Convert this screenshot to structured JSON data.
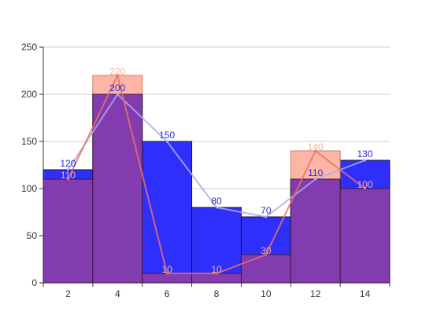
{
  "chart_data": {
    "type": "bar",
    "x": [
      2,
      4,
      6,
      8,
      10,
      12,
      14
    ],
    "categories": [
      "2",
      "4",
      "6",
      "8",
      "10",
      "12",
      "14"
    ],
    "ylim": [
      0,
      250
    ],
    "yticks": [
      0,
      50,
      100,
      150,
      200,
      250
    ],
    "grid": true,
    "title": "",
    "xlabel": "",
    "ylabel": "",
    "series": [
      {
        "values": [
          120,
          200,
          150,
          80,
          70,
          110,
          130
        ],
        "bar_color": "#2f2ffb",
        "line_color": "#aaaaf0",
        "label_color": "#2b2bdb"
      },
      {
        "values": [
          110,
          220,
          10,
          10,
          30,
          140,
          100
        ],
        "bar_color": "#ff9580",
        "bar_opacity": 0.7,
        "line_color": "#e8706a",
        "label_color": "#f4b19a"
      }
    ],
    "overlap_color": "#833bb0"
  }
}
